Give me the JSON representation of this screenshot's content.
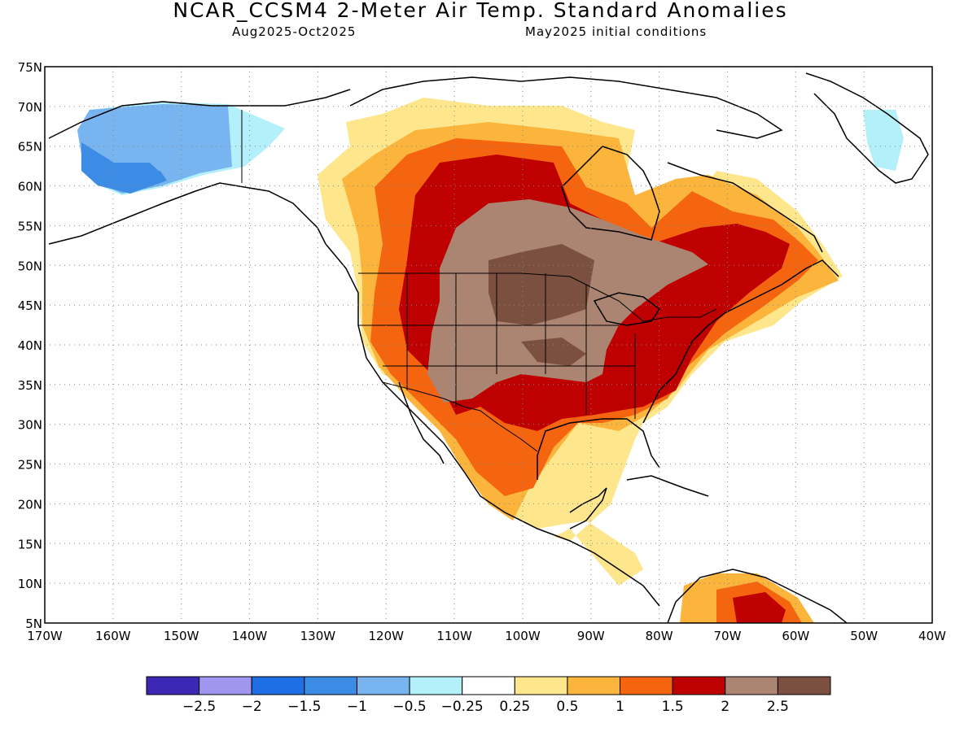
{
  "title": "NCAR_CCSM4 2-Meter Air Temp. Standard Anomalies",
  "subtitle_left": "Aug2025-Oct2025",
  "subtitle_right": "May2025 initial conditions",
  "map": {
    "lat_ticks": [
      "75N",
      "70N",
      "65N",
      "60N",
      "55N",
      "50N",
      "45N",
      "40N",
      "35N",
      "30N",
      "25N",
      "20N",
      "15N",
      "10N",
      "5N"
    ],
    "lon_ticks": [
      "170W",
      "160W",
      "150W",
      "140W",
      "130W",
      "120W",
      "110W",
      "100W",
      "90W",
      "80W",
      "70W",
      "60W",
      "50W",
      "40W"
    ],
    "lon_range": [
      -170,
      -40
    ],
    "lat_range": [
      5,
      75
    ],
    "grid": "dotted"
  },
  "colorbar": {
    "colors": [
      "#3c28b4",
      "#a096f0",
      "#1e6ee6",
      "#3c8ce6",
      "#78b4f0",
      "#b4f0fa",
      "#ffffff",
      "#fde68c",
      "#fbb43c",
      "#f5640f",
      "#be0000",
      "#ac8472",
      "#7b5040"
    ],
    "labels": [
      "-2.5",
      "-2",
      "-1.5",
      "-1",
      "-0.5",
      "-0.25",
      "0.25",
      "0.5",
      "1",
      "1.5",
      "2",
      "2.5"
    ]
  }
}
